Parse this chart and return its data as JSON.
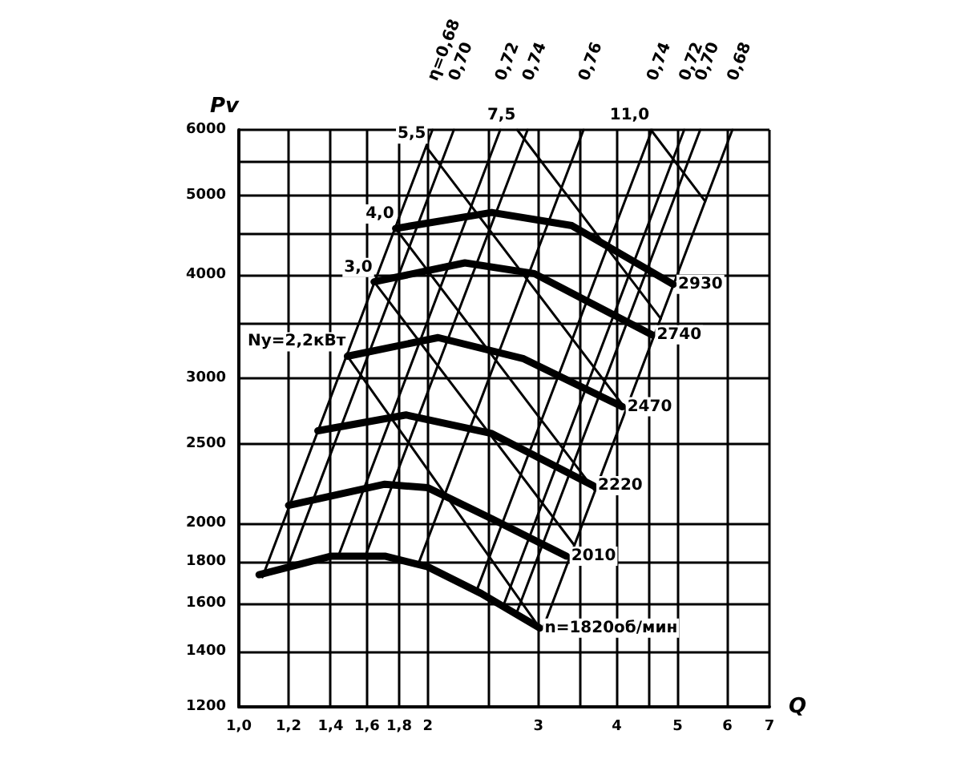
{
  "chart_data": {
    "type": "line",
    "xlabel": "Q",
    "ylabel": "Pv",
    "log": "xy",
    "grid": true,
    "xlim": [
      1,
      7
    ],
    "xticks": [
      {
        "value": 1,
        "label": "1,0"
      },
      {
        "value": 1.2,
        "label": "1,2"
      },
      {
        "value": 1.4,
        "label": "1,4"
      },
      {
        "value": 1.6,
        "label": "1,6"
      },
      {
        "value": 1.8,
        "label": "1,8"
      },
      2,
      {
        "value": 2.5,
        "label": null
      },
      3,
      {
        "value": 3.5,
        "label": null
      },
      4,
      {
        "value": 4.5,
        "label": null
      },
      5,
      6,
      7
    ],
    "ylim": [
      1200,
      6000
    ],
    "yticks": [
      1200,
      1400,
      1600,
      1800,
      2000,
      2500,
      3000,
      {
        "value": 3500,
        "label": null
      },
      4000,
      {
        "value": 4500,
        "label": null
      },
      5000,
      {
        "value": 5500,
        "label": null
      },
      6000
    ],
    "series": [
      {
        "name": "n=1820об/мин",
        "color": "#000000",
        "x": [
          1.077,
          1.404,
          1.708,
          1.998,
          2.43,
          3.015
        ],
        "values": [
          1735,
          1827,
          1827,
          1774,
          1647,
          1495
        ]
      },
      {
        "name": "2010",
        "color": "#000000",
        "x": [
          1.2,
          1.708,
          2.0,
          2.528,
          3.325
        ],
        "values": [
          2105,
          2233,
          2211,
          2028,
          1827
        ]
      },
      {
        "name": "2220",
        "color": "#000000",
        "x": [
          1.336,
          1.846,
          2.528,
          3.667
        ],
        "values": [
          2592,
          2709,
          2572,
          2224
        ]
      },
      {
        "name": "2470",
        "color": "#000000",
        "x": [
          1.489,
          2.077,
          2.843,
          4.084
        ],
        "values": [
          3191,
          3361,
          3168,
          2771
        ]
      },
      {
        "name": "2740",
        "color": "#000000",
        "x": [
          1.642,
          2.291,
          2.955,
          4.55
        ],
        "values": [
          3927,
          4140,
          4018,
          3387
        ]
      },
      {
        "name": "2930",
        "color": "#000000",
        "x": [
          1.777,
          2.528,
          3.392,
          4.92
        ],
        "values": [
          4557,
          4765,
          4593,
          3899
        ]
      },
      {
        "name": "Ny=2,2кВт",
        "color": "#000000",
        "x": [
          1.489,
          3.015
        ],
        "values": [
          3191,
          1495
        ]
      },
      {
        "name": "3,0",
        "color": "#000000",
        "x": [
          1.642,
          3.42
        ],
        "values": [
          3927,
          1885
        ]
      },
      {
        "name": "4,0",
        "color": "#000000",
        "x": [
          1.777,
          3.69
        ],
        "values": [
          4557,
          2194
        ]
      },
      {
        "name": "5,5",
        "color": "#000000",
        "x": [
          1.998,
          4.135
        ],
        "values": [
          5695,
          2752
        ]
      },
      {
        "name": "7,5",
        "color": "#000000",
        "x": [
          2.776,
          4.7
        ],
        "values": [
          6000,
          3544
        ]
      },
      {
        "name": "11,0",
        "color": "#000000",
        "x": [
          4.532,
          5.53
        ],
        "values": [
          6000,
          4917
        ]
      },
      {
        "name": "η=0,68",
        "color": "#000000",
        "x": [
          1.09,
          2.034
        ],
        "values": [
          1723,
          6000
        ]
      },
      {
        "name": "0,70",
        "color": "#000000",
        "x": [
          1.195,
          2.2
        ],
        "values": [
          1770,
          6000
        ]
      },
      {
        "name": "0,72",
        "color": "#000000",
        "x": [
          1.44,
          2.608
        ],
        "values": [
          1827,
          6000
        ]
      },
      {
        "name": "0,74",
        "color": "#000000",
        "x": [
          1.59,
          2.883
        ],
        "values": [
          1827,
          6000
        ]
      },
      {
        "name": "0,76",
        "color": "#000000",
        "x": [
          1.93,
          3.54
        ],
        "values": [
          1785,
          6000
        ]
      },
      {
        "name": "0,74",
        "color": "#000000",
        "x": [
          2.39,
          4.55
        ],
        "values": [
          1657,
          6000
        ]
      },
      {
        "name": "0,72",
        "color": "#000000",
        "x": [
          2.64,
          5.12
        ],
        "values": [
          1594,
          6000
        ]
      },
      {
        "name": "0,70",
        "color": "#000000",
        "x": [
          2.77,
          5.43
        ],
        "values": [
          1560,
          6000
        ]
      },
      {
        "name": "0,68",
        "color": "#000000",
        "x": [
          3.05,
          6.11
        ],
        "values": [
          1495,
          6000
        ]
      }
    ]
  }
}
